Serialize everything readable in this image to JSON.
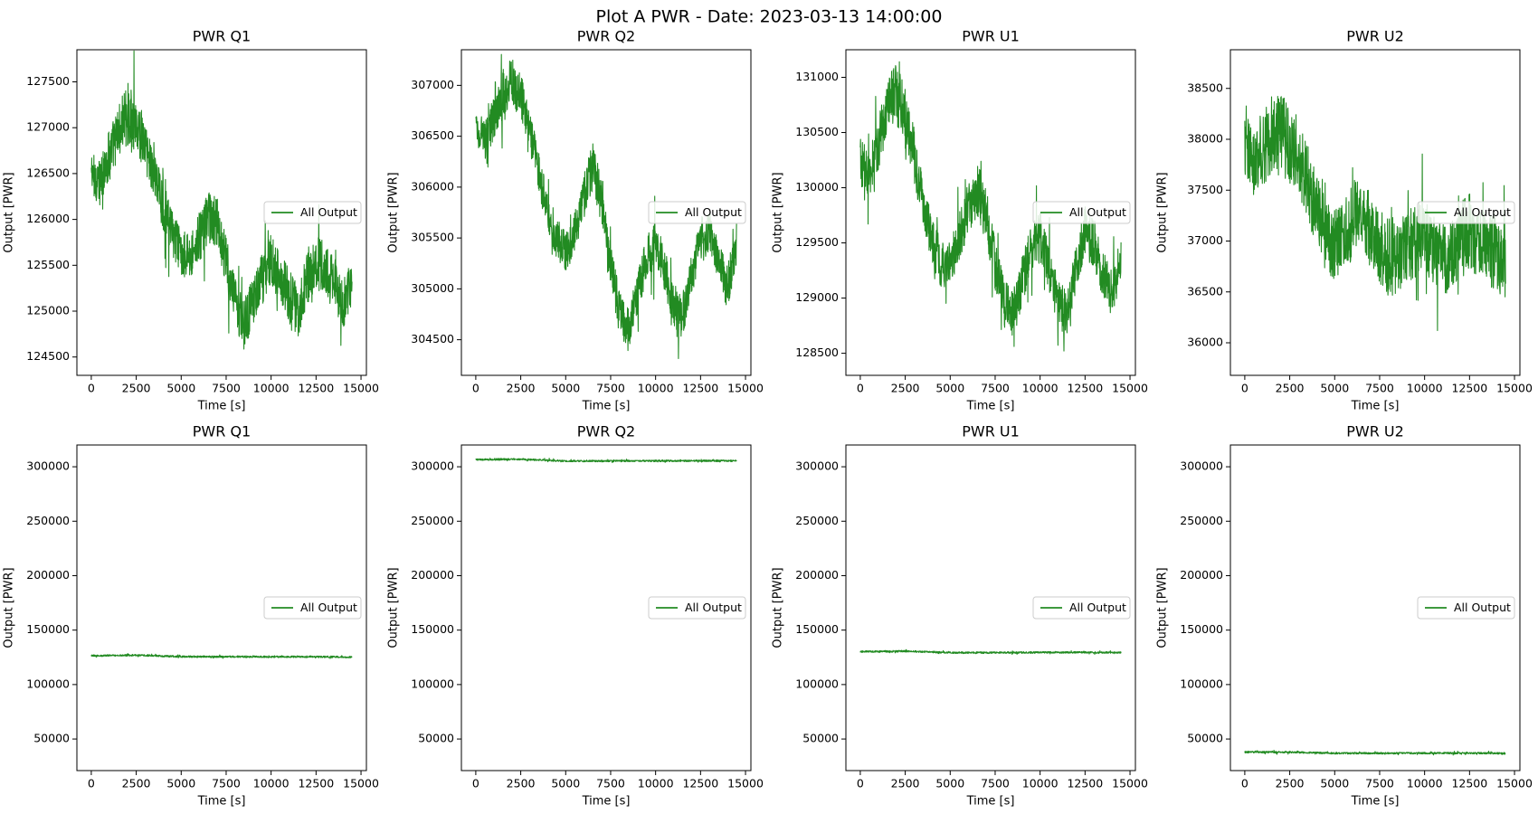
{
  "suptitle": "Plot A PWR - Date: 2023-03-13 14:00:00",
  "colors": {
    "series": "#228b22",
    "frame": "#000000",
    "background": "#ffffff"
  },
  "chart_data": [
    {
      "type": "line",
      "title": "PWR Q1",
      "xlabel": "Time [s]",
      "ylabel": "Output [PWR]",
      "xlim": [
        -800,
        15300
      ],
      "ylim": [
        124300,
        127850
      ],
      "xticks": [
        0,
        2500,
        5000,
        7500,
        10000,
        12500,
        15000
      ],
      "yticks": [
        124500,
        125000,
        125500,
        126000,
        126500,
        127000,
        127500
      ],
      "legend": "center-right",
      "grid": false,
      "series": [
        {
          "name": "All Output",
          "x": [
            0,
            500,
            1000,
            1500,
            2000,
            2500,
            3000,
            3500,
            4000,
            4500,
            5000,
            5500,
            6000,
            6500,
            7000,
            7500,
            8000,
            8500,
            9000,
            9500,
            10000,
            10500,
            11000,
            11500,
            12000,
            12500,
            13000,
            13500,
            14000,
            14500
          ],
          "y": [
            126500,
            126400,
            126700,
            126950,
            127150,
            127050,
            126800,
            126500,
            126150,
            125850,
            125650,
            125600,
            125800,
            126000,
            125950,
            125550,
            125050,
            124850,
            125100,
            125350,
            125550,
            125400,
            125150,
            125000,
            125350,
            125550,
            125450,
            125300,
            125100,
            125300
          ],
          "spread": [
            250,
            250,
            300,
            280,
            350,
            300,
            300,
            280,
            280,
            250,
            250,
            250,
            280,
            300,
            280,
            280,
            300,
            300,
            280,
            280,
            300,
            280,
            300,
            280,
            300,
            300,
            300,
            280,
            300,
            250
          ]
        }
      ]
    },
    {
      "type": "line",
      "title": "PWR Q2",
      "xlabel": "Time [s]",
      "ylabel": "Output [PWR]",
      "xlim": [
        -800,
        15300
      ],
      "ylim": [
        304150,
        307350
      ],
      "xticks": [
        0,
        2500,
        5000,
        7500,
        10000,
        12500,
        15000
      ],
      "yticks": [
        304500,
        305000,
        305500,
        306000,
        306500,
        307000
      ],
      "legend": "center-right",
      "grid": false,
      "series": [
        {
          "name": "All Output",
          "x": [
            0,
            500,
            1000,
            1500,
            2000,
            2500,
            3000,
            3500,
            4000,
            4500,
            5000,
            5500,
            6000,
            6500,
            7000,
            7500,
            8000,
            8500,
            9000,
            9500,
            10000,
            10500,
            11000,
            11500,
            12000,
            12500,
            13000,
            13500,
            14000,
            14500
          ],
          "y": [
            306600,
            306450,
            306650,
            306900,
            307050,
            306900,
            306550,
            306150,
            305750,
            305500,
            305350,
            305550,
            305900,
            306200,
            305850,
            305250,
            304750,
            304600,
            304950,
            305300,
            305450,
            305200,
            304850,
            304700,
            305150,
            305500,
            305550,
            305300,
            305000,
            305450
          ],
          "spread": [
            200,
            200,
            220,
            220,
            250,
            220,
            220,
            200,
            200,
            200,
            200,
            200,
            220,
            250,
            220,
            220,
            220,
            220,
            200,
            220,
            220,
            220,
            220,
            200,
            220,
            220,
            220,
            200,
            220,
            220
          ]
        }
      ]
    },
    {
      "type": "line",
      "title": "PWR U1",
      "xlabel": "Time [s]",
      "ylabel": "Output [PWR]",
      "xlim": [
        -800,
        15300
      ],
      "ylim": [
        128300,
        131250
      ],
      "xticks": [
        0,
        2500,
        5000,
        7500,
        10000,
        12500,
        15000
      ],
      "yticks": [
        128500,
        129000,
        129500,
        130000,
        130500,
        131000
      ],
      "legend": "center-right",
      "grid": false,
      "series": [
        {
          "name": "All Output",
          "x": [
            0,
            500,
            1000,
            1500,
            2000,
            2500,
            3000,
            3500,
            4000,
            4500,
            5000,
            5500,
            6000,
            6500,
            7000,
            7500,
            8000,
            8500,
            9000,
            9500,
            10000,
            10500,
            11000,
            11500,
            12000,
            12500,
            13000,
            13500,
            14000,
            14500
          ],
          "y": [
            130250,
            130100,
            130400,
            130750,
            130850,
            130650,
            130300,
            129850,
            129500,
            129300,
            129300,
            129550,
            129800,
            130000,
            129750,
            129300,
            128950,
            128850,
            129150,
            129450,
            129550,
            129250,
            128950,
            128850,
            129250,
            129600,
            129500,
            129200,
            129050,
            129350
          ],
          "spread": [
            220,
            220,
            250,
            250,
            280,
            250,
            250,
            220,
            220,
            220,
            200,
            220,
            250,
            250,
            250,
            220,
            220,
            220,
            220,
            220,
            250,
            220,
            220,
            220,
            220,
            250,
            220,
            220,
            220,
            220
          ]
        }
      ]
    },
    {
      "type": "line",
      "title": "PWR U2",
      "xlabel": "Time [s]",
      "ylabel": "Output [PWR]",
      "xlim": [
        -800,
        15300
      ],
      "ylim": [
        35680,
        38880
      ],
      "xticks": [
        0,
        2500,
        5000,
        7500,
        10000,
        12500,
        15000
      ],
      "yticks": [
        36000,
        36500,
        37000,
        37500,
        38000,
        38500
      ],
      "legend": "center-right",
      "grid": false,
      "series": [
        {
          "name": "All Output",
          "x": [
            0,
            500,
            1000,
            1500,
            2000,
            2500,
            3000,
            3500,
            4000,
            4500,
            5000,
            5500,
            6000,
            6500,
            7000,
            7500,
            8000,
            8500,
            9000,
            9500,
            10000,
            10500,
            11000,
            11500,
            12000,
            12500,
            13000,
            13500,
            14000,
            14500
          ],
          "y": [
            37950,
            37800,
            37900,
            38000,
            38050,
            37950,
            37850,
            37550,
            37300,
            37050,
            36950,
            37050,
            37200,
            37350,
            37100,
            36950,
            36850,
            36800,
            36950,
            37000,
            37050,
            36900,
            36800,
            36850,
            37000,
            37100,
            37000,
            36950,
            36850,
            36800
          ],
          "spread": [
            350,
            350,
            350,
            380,
            400,
            380,
            380,
            350,
            350,
            350,
            350,
            350,
            380,
            380,
            350,
            380,
            380,
            350,
            350,
            380,
            380,
            350,
            380,
            350,
            380,
            380,
            350,
            350,
            380,
            350
          ]
        }
      ]
    },
    {
      "type": "line",
      "title": "PWR Q1",
      "xlabel": "Time [s]",
      "ylabel": "Output [PWR]",
      "xlim": [
        -800,
        15300
      ],
      "ylim": [
        21000,
        320000
      ],
      "xticks": [
        0,
        2500,
        5000,
        7500,
        10000,
        12500,
        15000
      ],
      "yticks": [
        50000,
        100000,
        150000,
        200000,
        250000,
        300000
      ],
      "legend": "center-right",
      "grid": false,
      "series": [
        {
          "name": "All Output",
          "x": [
            0,
            2500,
            5000,
            7500,
            10000,
            12500,
            14500
          ],
          "y": [
            126500,
            127050,
            125650,
            125550,
            125550,
            125550,
            125300
          ],
          "spread": [
            800,
            800,
            800,
            800,
            800,
            800,
            800
          ]
        }
      ]
    },
    {
      "type": "line",
      "title": "PWR Q2",
      "xlabel": "Time [s]",
      "ylabel": "Output [PWR]",
      "xlim": [
        -800,
        15300
      ],
      "ylim": [
        21000,
        320000
      ],
      "xticks": [
        0,
        2500,
        5000,
        7500,
        10000,
        12500,
        15000
      ],
      "yticks": [
        50000,
        100000,
        150000,
        200000,
        250000,
        300000
      ],
      "legend": "center-right",
      "grid": false,
      "series": [
        {
          "name": "All Output",
          "x": [
            0,
            2500,
            5000,
            7500,
            10000,
            12500,
            14500
          ],
          "y": [
            306600,
            306900,
            305350,
            305250,
            305450,
            305500,
            305450
          ],
          "spread": [
            800,
            800,
            800,
            800,
            800,
            800,
            800
          ]
        }
      ]
    },
    {
      "type": "line",
      "title": "PWR U1",
      "xlabel": "Time [s]",
      "ylabel": "Output [PWR]",
      "xlim": [
        -800,
        15300
      ],
      "ylim": [
        21000,
        320000
      ],
      "xticks": [
        0,
        2500,
        5000,
        7500,
        10000,
        12500,
        15000
      ],
      "yticks": [
        50000,
        100000,
        150000,
        200000,
        250000,
        300000
      ],
      "legend": "center-right",
      "grid": false,
      "series": [
        {
          "name": "All Output",
          "x": [
            0,
            2500,
            5000,
            7500,
            10000,
            12500,
            14500
          ],
          "y": [
            130250,
            130650,
            129300,
            129300,
            129550,
            129600,
            129350
          ],
          "spread": [
            800,
            800,
            800,
            800,
            800,
            800,
            800
          ]
        }
      ]
    },
    {
      "type": "line",
      "title": "PWR U2",
      "xlabel": "Time [s]",
      "ylabel": "Output [PWR]",
      "xlim": [
        -800,
        15300
      ],
      "ylim": [
        21000,
        320000
      ],
      "xticks": [
        0,
        2500,
        5000,
        7500,
        10000,
        12500,
        15000
      ],
      "yticks": [
        50000,
        100000,
        150000,
        200000,
        250000,
        300000
      ],
      "legend": "center-right",
      "grid": false,
      "series": [
        {
          "name": "All Output",
          "x": [
            0,
            2500,
            5000,
            7500,
            10000,
            12500,
            14500
          ],
          "y": [
            37950,
            37950,
            36950,
            36950,
            37050,
            37100,
            36800
          ],
          "spread": [
            800,
            800,
            800,
            800,
            800,
            800,
            800
          ]
        }
      ]
    }
  ]
}
